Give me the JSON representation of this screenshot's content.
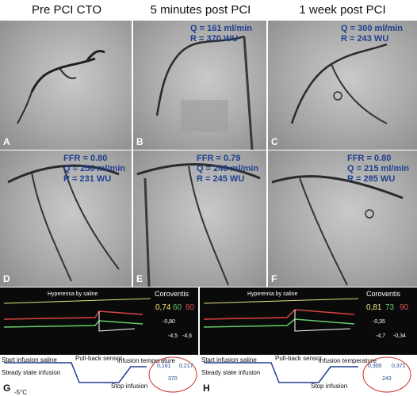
{
  "headers": [
    "Pre PCI CTO",
    "5 minutes post PCI",
    "1 week post PCI"
  ],
  "panels": {
    "A": {
      "label": "A"
    },
    "B": {
      "label": "B",
      "q": "Q = 161 ml/min",
      "r": "R = 370 WU"
    },
    "C": {
      "label": "C",
      "q": "Q = 300 ml/min",
      "r": "R = 243 WU"
    },
    "D": {
      "label": "D",
      "ffr": "FFR = 0.80",
      "q": "Q = 256 ml/min",
      "r": "R = 231 WU"
    },
    "E": {
      "label": "E",
      "ffr": "FFR = 0.79",
      "q": "Q = 246 ml/min",
      "r": "R = 245 WU"
    },
    "F": {
      "label": "F",
      "ffr": "FFR = 0.80",
      "q": "Q = 215 ml/min",
      "r": "R = 285 WU"
    }
  },
  "monitors": {
    "G": {
      "label": "G",
      "brand": "Coroventis",
      "hyperemia": "Hyperemia by saline",
      "ffr": "0,74",
      "pa": "60",
      "pd": "80",
      "q_label": "Q",
      "q_val": "0,161",
      "q2_val": "0,217",
      "r_val": "370",
      "sm": "-0,80",
      "wl_temp": "-4,5",
      "ws_temp": "-4,6",
      "annotations": {
        "start": "Start infusion saline",
        "pullback": "Pull-back sensor",
        "infusion_temp": "infusion\ntemperature",
        "steady": "Steady state infusion",
        "stop": "Stop infusion",
        "temp": "-5°C",
        "zero": "0°C"
      }
    },
    "H": {
      "label": "H",
      "brand": "Coroventis",
      "hyperemia": "Hyperemia by saline",
      "ffr": "0,81",
      "pa": "73",
      "pd": "90",
      "q_val": "0,300",
      "q2_val": "0,371",
      "r_val": "243",
      "sm": "-0,35",
      "wl_temp": "-4,7",
      "ws_temp": "-0,34",
      "annotations": {
        "start": "Start infusion saline",
        "pullback": "Pull-back sensor",
        "infusion_temp": "infusion\ntemperature",
        "steady": "Steady state infusion",
        "stop": "Stop infusion"
      }
    }
  }
}
